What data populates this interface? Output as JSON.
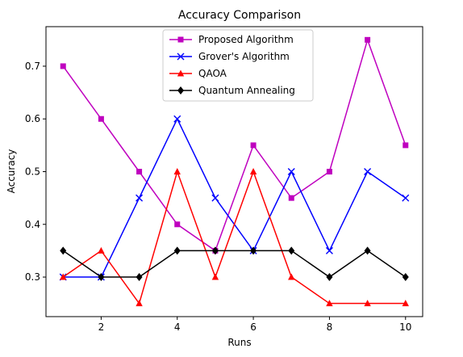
{
  "chart_data": {
    "type": "line",
    "title": "Accuracy Comparison",
    "xlabel": "Runs",
    "ylabel": "Accuracy",
    "xlim": [
      0.55,
      10.45
    ],
    "ylim": [
      0.225,
      0.775
    ],
    "xticks": [
      2,
      4,
      6,
      8,
      10
    ],
    "yticks": [
      0.3,
      0.4,
      0.5,
      0.6,
      0.7
    ],
    "legend_position": "top-center",
    "grid": false,
    "x": [
      1,
      2,
      3,
      4,
      5,
      6,
      7,
      8,
      9,
      10
    ],
    "series": [
      {
        "name": "Proposed Algorithm",
        "color": "#bf00bf",
        "marker": "square",
        "values": [
          0.7,
          0.6,
          0.5,
          0.4,
          0.35,
          0.55,
          0.45,
          0.5,
          0.75,
          0.55
        ]
      },
      {
        "name": "Grover's Algorithm",
        "color": "#0000ff",
        "marker": "x",
        "values": [
          0.3,
          0.3,
          0.45,
          0.6,
          0.45,
          0.35,
          0.5,
          0.35,
          0.5,
          0.45
        ]
      },
      {
        "name": "QAOA",
        "color": "#ff0000",
        "marker": "triangle",
        "values": [
          0.3,
          0.35,
          0.25,
          0.5,
          0.3,
          0.5,
          0.3,
          0.25,
          0.25,
          0.25
        ]
      },
      {
        "name": "Quantum Annealing",
        "color": "#000000",
        "marker": "diamond",
        "values": [
          0.35,
          0.3,
          0.3,
          0.35,
          0.35,
          0.35,
          0.35,
          0.3,
          0.35,
          0.3
        ]
      }
    ]
  }
}
